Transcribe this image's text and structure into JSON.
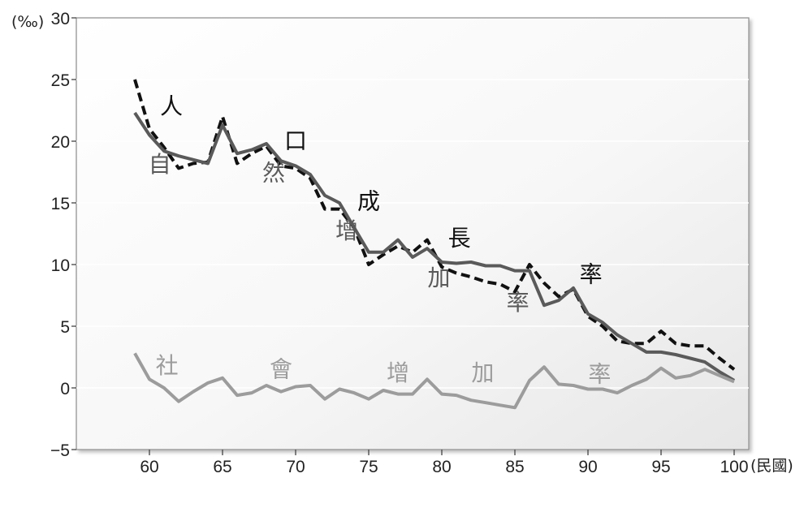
{
  "chart_data": {
    "type": "line",
    "title": "",
    "y_unit": "(‰)",
    "x_unit": "(民國)",
    "xlim": [
      55,
      101
    ],
    "ylim": [
      -5,
      30
    ],
    "x_ticks": [
      60,
      65,
      70,
      75,
      80,
      85,
      90,
      95,
      100
    ],
    "y_ticks": [
      -5,
      0,
      5,
      10,
      15,
      20,
      25,
      30
    ],
    "y_tick_labels": [
      "−5",
      "0",
      "5",
      "10",
      "15",
      "20",
      "25",
      "30"
    ],
    "grid": "horizontal",
    "legend": "none",
    "series": [
      {
        "key": "population_growth",
        "style": "dashed",
        "color": "#111111",
        "x": [
          59,
          60,
          61,
          62,
          63,
          64,
          65,
          66,
          67,
          68,
          69,
          70,
          71,
          72,
          73,
          74,
          75,
          76,
          77,
          78,
          79,
          80,
          81,
          82,
          83,
          84,
          85,
          86,
          87,
          88,
          89,
          90,
          91,
          92,
          93,
          94,
          95,
          96,
          97,
          98,
          99,
          100
        ],
        "y": [
          25.0,
          21.0,
          19.5,
          17.8,
          18.2,
          18.3,
          22.0,
          18.2,
          19.0,
          19.6,
          18.0,
          17.8,
          17.0,
          14.5,
          14.5,
          13.0,
          10.0,
          10.8,
          11.5,
          11.0,
          12.0,
          9.8,
          9.3,
          9.0,
          8.6,
          8.4,
          7.8,
          10.0,
          8.5,
          7.4,
          8.0,
          5.8,
          5.0,
          3.8,
          3.6,
          3.6,
          4.6,
          3.6,
          3.4,
          3.4,
          2.4,
          1.5
        ]
      },
      {
        "key": "natural_increase",
        "style": "solid",
        "color": "#5a5a5a",
        "x": [
          59,
          60,
          61,
          62,
          63,
          64,
          65,
          66,
          67,
          68,
          69,
          70,
          71,
          72,
          73,
          74,
          75,
          76,
          77,
          78,
          79,
          80,
          81,
          82,
          83,
          84,
          85,
          86,
          87,
          88,
          89,
          90,
          91,
          92,
          93,
          94,
          95,
          96,
          97,
          98,
          99,
          100
        ],
        "y": [
          22.3,
          20.5,
          19.2,
          18.8,
          18.5,
          18.2,
          21.3,
          19.0,
          19.3,
          19.8,
          18.4,
          18.0,
          17.3,
          15.6,
          15.0,
          13.0,
          11.0,
          11.0,
          12.0,
          10.6,
          11.3,
          10.2,
          10.1,
          10.2,
          9.9,
          9.9,
          9.5,
          9.5,
          6.7,
          7.1,
          8.1,
          6.0,
          5.3,
          4.3,
          3.6,
          2.9,
          2.9,
          2.7,
          2.4,
          2.1,
          1.3,
          0.6
        ]
      },
      {
        "key": "social_increase",
        "style": "solid",
        "color": "#9c9c9c",
        "x": [
          59,
          60,
          61,
          62,
          63,
          64,
          65,
          66,
          67,
          68,
          69,
          70,
          71,
          72,
          73,
          74,
          75,
          76,
          77,
          78,
          79,
          80,
          81,
          82,
          83,
          84,
          85,
          86,
          87,
          88,
          89,
          90,
          91,
          92,
          93,
          94,
          95,
          96,
          97,
          98,
          99,
          100
        ],
        "y": [
          2.8,
          0.7,
          0.0,
          -1.1,
          -0.3,
          0.4,
          0.8,
          -0.6,
          -0.4,
          0.2,
          -0.3,
          0.1,
          0.2,
          -0.9,
          -0.1,
          -0.4,
          -0.9,
          -0.2,
          -0.5,
          -0.5,
          0.7,
          -0.5,
          -0.6,
          -1.0,
          -1.2,
          -1.4,
          -1.6,
          0.6,
          1.7,
          0.3,
          0.2,
          -0.1,
          -0.1,
          -0.4,
          0.2,
          0.7,
          1.6,
          0.8,
          1.0,
          1.5,
          1.0,
          0.5
        ]
      }
    ],
    "annotations": [
      {
        "text": "人",
        "x": 61.5,
        "y": 22.2,
        "color": "#111111"
      },
      {
        "text": "口",
        "x": 70.0,
        "y": 19.4,
        "color": "#111111"
      },
      {
        "text": "成",
        "x": 75.0,
        "y": 14.5,
        "color": "#111111"
      },
      {
        "text": "長",
        "x": 81.2,
        "y": 11.5,
        "color": "#111111"
      },
      {
        "text": "率",
        "x": 90.2,
        "y": 8.6,
        "color": "#111111"
      },
      {
        "text": "自",
        "x": 60.7,
        "y": 17.5,
        "color": "#5a5a5a"
      },
      {
        "text": "然",
        "x": 68.5,
        "y": 16.8,
        "color": "#5a5a5a"
      },
      {
        "text": "增",
        "x": 73.5,
        "y": 12.1,
        "color": "#5a5a5a"
      },
      {
        "text": "加",
        "x": 79.8,
        "y": 8.3,
        "color": "#5a5a5a"
      },
      {
        "text": "率",
        "x": 85.2,
        "y": 6.3,
        "color": "#5a5a5a"
      },
      {
        "text": "社",
        "x": 61.2,
        "y": 1.2,
        "color": "#9c9c9c"
      },
      {
        "text": "會",
        "x": 69.0,
        "y": 0.9,
        "color": "#9c9c9c"
      },
      {
        "text": "增",
        "x": 77.0,
        "y": 0.6,
        "color": "#9c9c9c"
      },
      {
        "text": "加",
        "x": 82.8,
        "y": 0.6,
        "color": "#9c9c9c"
      },
      {
        "text": "率",
        "x": 90.8,
        "y": 0.5,
        "color": "#9c9c9c"
      }
    ]
  }
}
